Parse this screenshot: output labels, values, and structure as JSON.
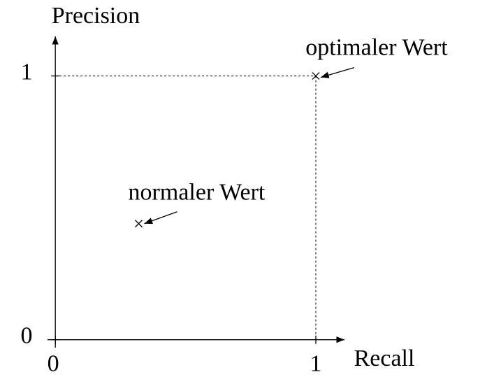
{
  "chart_data": {
    "type": "scatter",
    "x_label": "Recall",
    "y_label": "Precision",
    "x": [
      1,
      0.32
    ],
    "values": [
      1,
      0.44
    ],
    "annotations": [
      "optimaler Wert",
      "normaler Wert"
    ],
    "xlim": [
      -0.03,
      1.11
    ],
    "ylim": [
      -0.03,
      1.15
    ],
    "xticks": [
      0,
      1
    ],
    "yticks": [
      0,
      1
    ],
    "color": "#000000"
  }
}
